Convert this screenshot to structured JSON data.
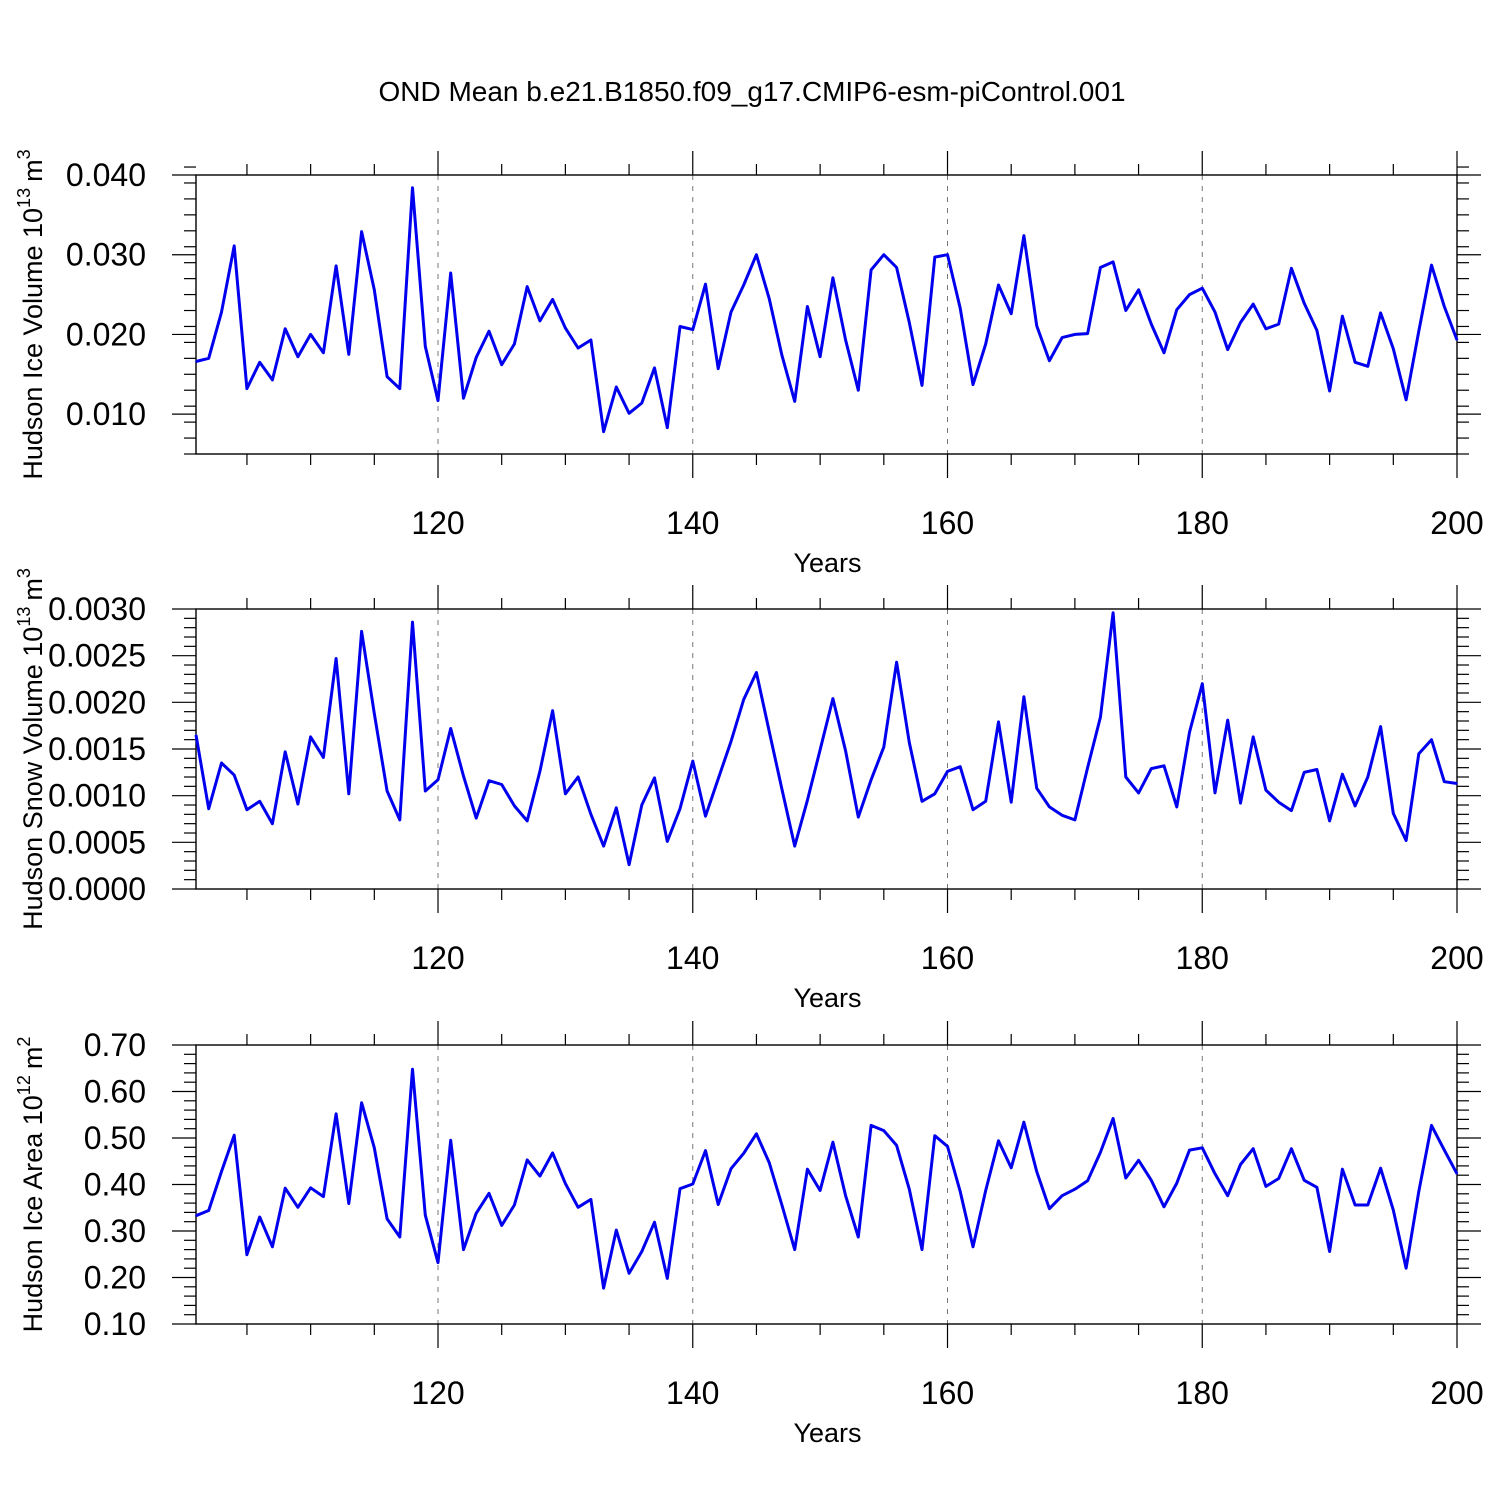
{
  "chart_data": {
    "title": "OND Mean b.e21.B1850.f09_g17.CMIP6-esm-piControl.001",
    "panels": [
      {
        "type": "line",
        "ylabel": "Hudson Ice Volume 10",
        "ylabel_exp": "13",
        "ylabel_unit": "m",
        "ylabel_unit_exp": "3",
        "xlabel": "Years",
        "xlim": [
          101,
          200
        ],
        "ylim": [
          0.005,
          0.04
        ],
        "yticks": [
          0.01,
          0.02,
          0.03,
          0.04
        ],
        "ytick_labels": [
          "0.010",
          "0.020",
          "0.030",
          "0.040"
        ],
        "xticks": [
          120,
          140,
          160,
          180,
          200
        ],
        "xtick_labels": [
          "120",
          "140",
          "160",
          "180",
          "200"
        ],
        "series": [
          {
            "name": "Hudson Ice Volume",
            "color": "#0000ee",
            "x_start": 101,
            "values": [
              0.0166,
              0.017,
              0.0228,
              0.0311,
              0.0132,
              0.0165,
              0.0143,
              0.0207,
              0.0172,
              0.02,
              0.0177,
              0.0286,
              0.0175,
              0.0329,
              0.0256,
              0.0147,
              0.0132,
              0.0384,
              0.0185,
              0.0117,
              0.0277,
              0.012,
              0.0171,
              0.0204,
              0.0162,
              0.0188,
              0.026,
              0.0217,
              0.0244,
              0.0208,
              0.0183,
              0.0193,
              0.0078,
              0.0134,
              0.0101,
              0.0114,
              0.0158,
              0.0083,
              0.021,
              0.0206,
              0.0263,
              0.0157,
              0.0228,
              0.0262,
              0.03,
              0.0245,
              0.0174,
              0.0116,
              0.0235,
              0.0172,
              0.0271,
              0.0193,
              0.013,
              0.0281,
              0.03,
              0.0284,
              0.0215,
              0.0136,
              0.0297,
              0.03,
              0.0233,
              0.0137,
              0.0188,
              0.0262,
              0.0226,
              0.0324,
              0.0211,
              0.0167,
              0.0196,
              0.02,
              0.0201,
              0.0284,
              0.0291,
              0.023,
              0.0256,
              0.0213,
              0.0177,
              0.0231,
              0.025,
              0.0258,
              0.0228,
              0.0181,
              0.0215,
              0.0238,
              0.0207,
              0.0213,
              0.0283,
              0.0239,
              0.0205,
              0.0129,
              0.0223,
              0.0165,
              0.016,
              0.0227,
              0.0182,
              0.0118,
              0.0204,
              0.0287,
              0.0235,
              0.0193
            ]
          }
        ]
      },
      {
        "type": "line",
        "ylabel": "Hudson Snow Volume 10",
        "ylabel_exp": "13",
        "ylabel_unit": "m",
        "ylabel_unit_exp": "3",
        "xlabel": "Years",
        "xlim": [
          101,
          200
        ],
        "ylim": [
          0,
          0.003
        ],
        "yticks": [
          0,
          0.0005,
          0.001,
          0.0015,
          0.002,
          0.0025,
          0.003
        ],
        "ytick_labels": [
          "0.0000",
          "0.0005",
          "0.0010",
          "0.0015",
          "0.0020",
          "0.0025",
          "0.0030"
        ],
        "xticks": [
          120,
          140,
          160,
          180,
          200
        ],
        "xtick_labels": [
          "120",
          "140",
          "160",
          "180",
          "200"
        ],
        "series": [
          {
            "name": "Hudson Snow Volume",
            "color": "#0000ee",
            "x_start": 101,
            "values": [
              0.00165,
              0.00086,
              0.00135,
              0.00122,
              0.00085,
              0.00094,
              0.0007,
              0.00147,
              0.00091,
              0.00163,
              0.00141,
              0.00247,
              0.00102,
              0.00276,
              0.00188,
              0.00105,
              0.00074,
              0.00286,
              0.00105,
              0.00117,
              0.00172,
              0.00121,
              0.00076,
              0.00116,
              0.00112,
              0.00089,
              0.00073,
              0.00126,
              0.00191,
              0.00102,
              0.0012,
              0.0008,
              0.00046,
              0.00087,
              0.00026,
              0.0009,
              0.00119,
              0.00051,
              0.00086,
              0.00137,
              0.00078,
              0.00118,
              0.00158,
              0.00203,
              0.00232,
              0.00169,
              0.00107,
              0.00046,
              0.00095,
              0.00149,
              0.00204,
              0.00148,
              0.00077,
              0.00117,
              0.00152,
              0.00243,
              0.00157,
              0.00094,
              0.00102,
              0.00126,
              0.00131,
              0.00085,
              0.00094,
              0.00179,
              0.00093,
              0.00206,
              0.00108,
              0.00088,
              0.00079,
              0.00074,
              0.0013,
              0.00184,
              0.00296,
              0.0012,
              0.00103,
              0.00129,
              0.00132,
              0.00088,
              0.00168,
              0.0022,
              0.00103,
              0.00181,
              0.00092,
              0.00163,
              0.00106,
              0.00093,
              0.00084,
              0.00125,
              0.00128,
              0.00073,
              0.00123,
              0.00089,
              0.0012,
              0.00174,
              0.00081,
              0.00052,
              0.00145,
              0.0016,
              0.00115,
              0.00113
            ]
          }
        ]
      },
      {
        "type": "line",
        "ylabel": "Hudson Ice Area 10",
        "ylabel_exp": "12",
        "ylabel_unit": "m",
        "ylabel_unit_exp": "2",
        "xlabel": "Years",
        "xlim": [
          101,
          200
        ],
        "ylim": [
          0.1,
          0.7
        ],
        "yticks": [
          0.1,
          0.2,
          0.3,
          0.4,
          0.5,
          0.6,
          0.7
        ],
        "ytick_labels": [
          "0.10",
          "0.20",
          "0.30",
          "0.40",
          "0.50",
          "0.60",
          "0.70"
        ],
        "xticks": [
          120,
          140,
          160,
          180,
          200
        ],
        "xtick_labels": [
          "120",
          "140",
          "160",
          "180",
          "200"
        ],
        "series": [
          {
            "name": "Hudson Ice Area",
            "color": "#0000ee",
            "x_start": 101,
            "values": [
              0.333,
              0.344,
              0.428,
              0.506,
              0.249,
              0.33,
              0.266,
              0.392,
              0.351,
              0.393,
              0.374,
              0.552,
              0.359,
              0.576,
              0.479,
              0.326,
              0.287,
              0.648,
              0.334,
              0.232,
              0.495,
              0.26,
              0.338,
              0.381,
              0.312,
              0.356,
              0.453,
              0.418,
              0.468,
              0.402,
              0.351,
              0.368,
              0.177,
              0.302,
              0.209,
              0.256,
              0.319,
              0.198,
              0.391,
              0.401,
              0.473,
              0.357,
              0.434,
              0.467,
              0.509,
              0.447,
              0.356,
              0.26,
              0.433,
              0.387,
              0.491,
              0.376,
              0.287,
              0.527,
              0.516,
              0.484,
              0.39,
              0.26,
              0.505,
              0.482,
              0.385,
              0.266,
              0.387,
              0.494,
              0.436,
              0.534,
              0.428,
              0.348,
              0.376,
              0.39,
              0.408,
              0.469,
              0.542,
              0.414,
              0.452,
              0.409,
              0.352,
              0.403,
              0.474,
              0.479,
              0.423,
              0.376,
              0.443,
              0.477,
              0.396,
              0.413,
              0.477,
              0.409,
              0.394,
              0.256,
              0.433,
              0.356,
              0.356,
              0.435,
              0.345,
              0.22,
              0.385,
              0.527,
              0.474,
              0.423
            ]
          }
        ]
      }
    ]
  }
}
